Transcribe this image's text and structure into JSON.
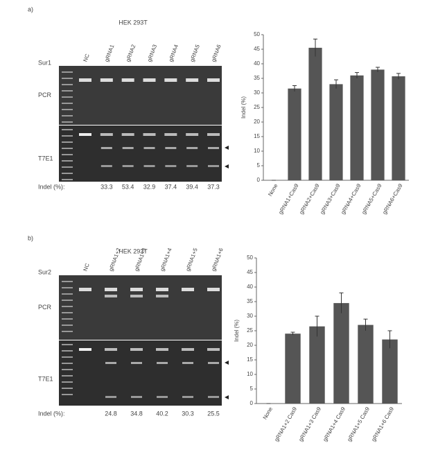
{
  "gels": [
    {
      "panel": "a)",
      "cell": "HEK 293T",
      "enzyme": "Sur1",
      "lanes": [
        "NC",
        "gRNA1",
        "gRNA2",
        "gRNA3",
        "gRNA4",
        "gRNA5",
        "gRNA6"
      ],
      "pcr": "PCR",
      "t7": "T7E1",
      "indel_label": "Indel (%):",
      "indel": [
        33.3,
        53.4,
        32.9,
        37.4,
        39.4,
        37.3
      ]
    },
    {
      "panel": "b)",
      "cell": "HEK 293T",
      "enzyme": "Sur2",
      "lanes": [
        "NC",
        "gRNA1+2",
        "gRNA1+3",
        "gRNA1+4",
        "gRNA1+5",
        "gRNA1+6"
      ],
      "pcr": "PCR",
      "t7": "T7E1",
      "indel_label": "Indel (%):",
      "indel": [
        24.8,
        34.8,
        40.2,
        30.3,
        25.5
      ]
    }
  ],
  "chart_data": [
    {
      "type": "bar",
      "ylabel": "Indel (%)",
      "categories": [
        "None",
        "gRNA1+Cas9",
        "gRNA2+Cas9",
        "gRNA3+Cas9",
        "gRNA4+Cas9",
        "gRNA5+Cas9",
        "gRNA6+Cas9"
      ],
      "values": [
        0,
        31.5,
        45.5,
        33,
        36,
        38,
        35.7
      ],
      "errors": [
        0,
        1,
        3,
        1.5,
        1,
        0.8,
        1
      ],
      "color": "#555555",
      "ylim": [
        0,
        50
      ],
      "yticks": [
        0,
        5,
        10,
        15,
        20,
        25,
        30,
        35,
        40,
        45,
        50
      ]
    },
    {
      "type": "bar",
      "ylabel": "Indel (%)",
      "categories": [
        "None",
        "gRNA1+2 Cas9",
        "gRNA1+3 Cas9",
        "gRNA1+4 Cas9",
        "gRNA1+5 Cas9",
        "gRNA1+6 Cas9"
      ],
      "values": [
        0,
        24,
        26.5,
        34.5,
        27,
        22
      ],
      "errors": [
        0,
        0.5,
        3.5,
        3.5,
        2,
        3
      ],
      "color": "#555555",
      "ylim": [
        0,
        50
      ],
      "yticks": [
        0,
        5,
        10,
        15,
        20,
        25,
        30,
        35,
        40,
        45,
        50
      ]
    }
  ]
}
